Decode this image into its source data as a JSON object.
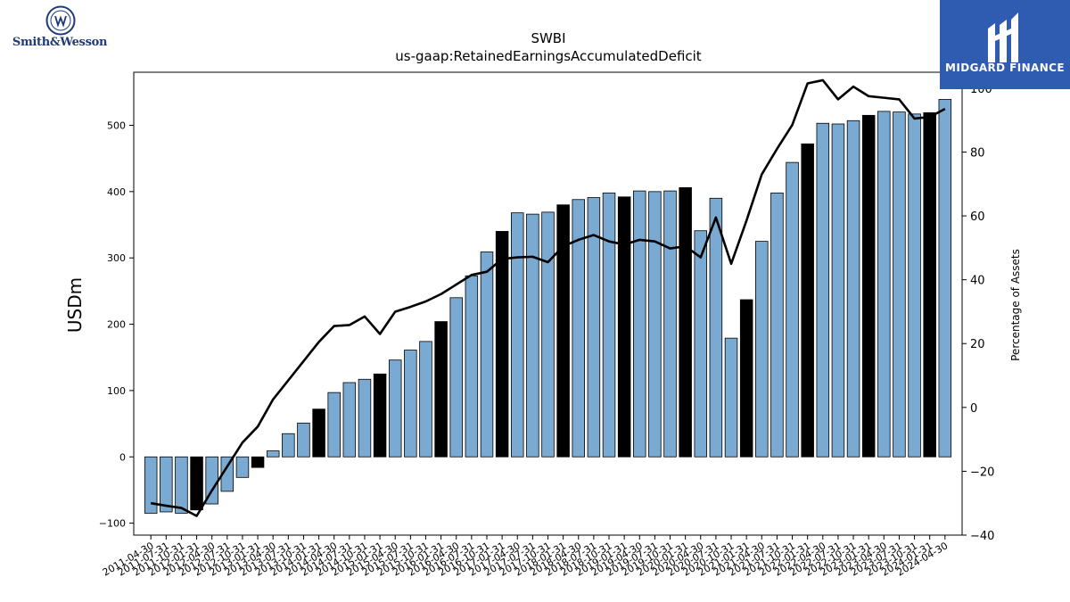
{
  "logos": {
    "left": "Smith&Wesson",
    "right": "MIDGARD FINANCE"
  },
  "colors": {
    "bar_default": "#7aaad2",
    "bar_highlight": "#000000",
    "line": "#000000",
    "brand_blue": "#2f5bb0"
  },
  "chart_data": {
    "type": "bar",
    "title": "SWBI",
    "subtitle": "us-gaap:RetainedEarningsAccumulatedDeficit",
    "ylabel": "USDm",
    "y2label": "Percentage of Assets",
    "ylim": [
      -118,
      580
    ],
    "y2lim": [
      -40,
      105
    ],
    "yticks": [
      -100,
      0,
      100,
      200,
      300,
      400,
      500
    ],
    "y2ticks": [
      -40,
      -20,
      0,
      20,
      40,
      60,
      80,
      100
    ],
    "ytick_labels": [
      "−100",
      "0",
      "100",
      "200",
      "300",
      "400",
      "500"
    ],
    "y2tick_labels": [
      "−40",
      "−20",
      "0",
      "20",
      "40",
      "60",
      "80",
      "100"
    ],
    "grid": false,
    "categories": [
      "2011-04-30",
      "2011-07-31",
      "2011-10-31",
      "2012-01-31",
      "2012-04-30",
      "2012-07-31",
      "2012-10-31",
      "2013-01-31",
      "2013-04-30",
      "2013-07-31",
      "2013-10-31",
      "2014-01-31",
      "2014-04-30",
      "2014-07-31",
      "2014-10-31",
      "2015-01-31",
      "2015-04-30",
      "2015-07-31",
      "2015-10-31",
      "2016-01-31",
      "2016-04-30",
      "2016-07-31",
      "2016-10-31",
      "2017-01-31",
      "2017-04-30",
      "2017-07-31",
      "2017-10-31",
      "2018-01-31",
      "2018-04-30",
      "2018-07-31",
      "2018-10-31",
      "2019-01-31",
      "2019-04-30",
      "2019-07-31",
      "2019-10-31",
      "2020-01-31",
      "2020-04-30",
      "2020-07-31",
      "2020-10-31",
      "2021-01-31",
      "2021-04-30",
      "2021-07-31",
      "2021-10-31",
      "2022-01-31",
      "2022-04-30",
      "2022-07-31",
      "2022-10-31",
      "2023-01-31",
      "2023-04-30",
      "2023-07-31",
      "2023-10-31",
      "2024-01-31",
      "2024-04-30"
    ],
    "x_labels": [
      "2011-04-30",
      "2011-07-31",
      "2011-10-31",
      "2012-01-31",
      "2012-04-30",
      "2012-07-31",
      "2012-10-31",
      "2013-01-31",
      "2013-04-30",
      "2013-07-31",
      "2013-10-31",
      "2014-01-31",
      "2014-04-30",
      "2014-07-31",
      "2014-10-31",
      "2015-01-31",
      "2015-04-30",
      "2015-07-31",
      "2015-10-31",
      "2016-01-31",
      "2016-04-30",
      "2016-07-31",
      "2016-10-31",
      "2017-01-31",
      "2017-04-30",
      "2017-07-31",
      "2017-10-31",
      "2018-01-31",
      "2018-04-30",
      "2018-07-31",
      "2018-10-31",
      "2019-01-31",
      "2019-04-30",
      "2019-07-31",
      "2019-10-31",
      "2020-01-31",
      "2020-04-30",
      "2020-07-31",
      "2020-10-31",
      "2021-01-31",
      "2021-04-30",
      "2021-07-31",
      "2021-10-31",
      "2022-01-31",
      "2022-04-30",
      "2022-07-31",
      "2022-10-31",
      "2023-01-31",
      "2023-04-30",
      "2023-07-31",
      "2023-10-31",
      "2024-01-31",
      "2024-04-30"
    ],
    "highlight": [
      false,
      false,
      false,
      true,
      false,
      false,
      false,
      true,
      false,
      false,
      false,
      true,
      false,
      false,
      false,
      true,
      false,
      false,
      false,
      true,
      false,
      false,
      false,
      true,
      false,
      false,
      false,
      true,
      false,
      false,
      false,
      true,
      false,
      false,
      false,
      true,
      false,
      false,
      false,
      true,
      false,
      false,
      false,
      true,
      false,
      false,
      false,
      true,
      false,
      false,
      false,
      true,
      false
    ],
    "series": [
      {
        "axis": "left",
        "kind": "bar",
        "values": [
          -85,
          -83,
          -85,
          -80,
          -71,
          -52,
          -31,
          -16,
          9,
          35,
          51,
          72,
          97,
          112,
          117,
          125,
          146,
          161,
          174,
          204,
          240,
          273,
          309,
          340,
          368,
          366,
          369,
          380,
          388,
          391,
          398,
          392,
          401,
          400,
          401,
          406,
          341,
          390,
          179,
          237,
          325,
          398,
          444,
          472,
          503,
          502,
          507,
          515,
          521,
          520,
          517,
          519,
          539
        ]
      },
      {
        "axis": "right",
        "kind": "line",
        "values": [
          -30,
          -30.8,
          -31.5,
          -34,
          -26,
          -18.5,
          -11,
          -6,
          2.5,
          8.5,
          14.5,
          20.5,
          25.5,
          25.8,
          28.5,
          23,
          30,
          31.5,
          33.2,
          35.5,
          38.5,
          41.5,
          42.5,
          46.5,
          47,
          47.2,
          45.5,
          50.5,
          52.5,
          54,
          52,
          51,
          52.5,
          52,
          49.8,
          50.5,
          47,
          59.5,
          45,
          58.5,
          73,
          81,
          88.5,
          101.5,
          102.5,
          96.5,
          100.5,
          97.5,
          97,
          96.5,
          90.5,
          91,
          93.5
        ]
      }
    ]
  }
}
